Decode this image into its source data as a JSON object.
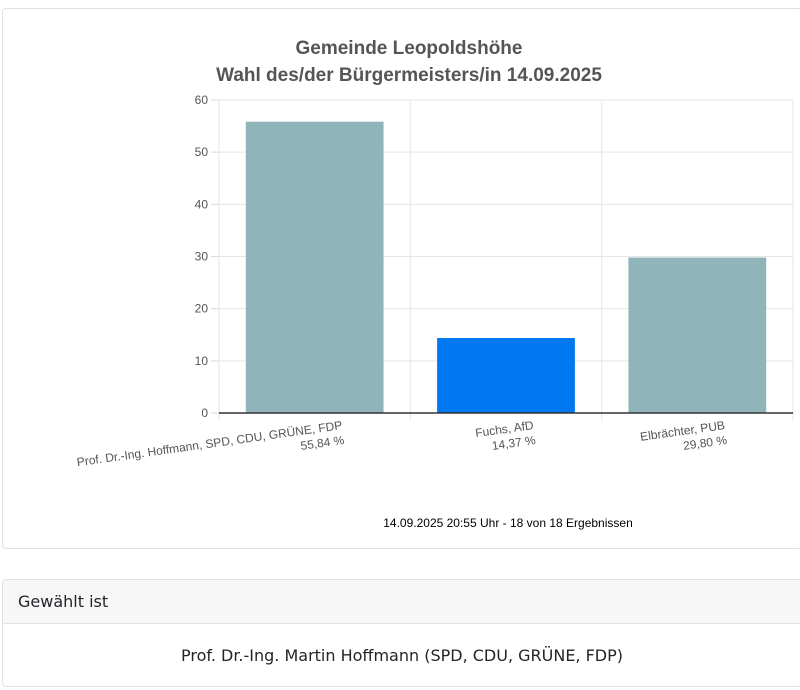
{
  "chart_data": {
    "type": "bar",
    "title": "Gemeinde Leopoldshöhe",
    "subtitle": "Wahl des/der Bürgermeisters/in 14.09.2025",
    "categories": [
      "Prof. Dr.-Ing. Hoffmann, SPD, CDU, GRÜNE, FDP",
      "Fuchs, AfD",
      "Elbrächter, PUB"
    ],
    "value_labels": [
      "55,84 %",
      "14,37 %",
      "29,80 %"
    ],
    "values": [
      55.84,
      14.37,
      29.8
    ],
    "colors": [
      "#8fb4ba",
      "#0078ef",
      "#8fb4ba"
    ],
    "ylim": [
      0,
      60
    ],
    "yticks": [
      0,
      10,
      20,
      30,
      40,
      50,
      60
    ],
    "grid": true,
    "footnote": "14.09.2025 20:55 Uhr - 18 von 18 Ergebnissen"
  },
  "result": {
    "header": "Gewählt ist",
    "winner": "Prof. Dr.-Ing. Martin Hoffmann (SPD, CDU, GRÜNE, FDP)"
  }
}
